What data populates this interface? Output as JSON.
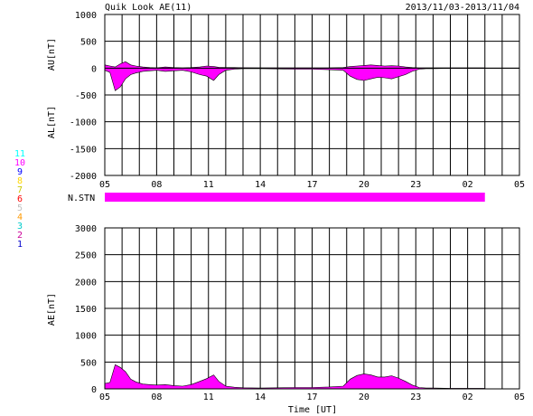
{
  "header": {
    "title": "Quik Look AE(11)",
    "date_range": "2013/11/03-2013/11/04"
  },
  "colors": {
    "fill": "#ff00ff",
    "axis": "#000000"
  },
  "chart_data": [
    {
      "type": "area",
      "name": "AU/AL",
      "ylabel_upper": "AU[nT]",
      "ylabel_lower": "AL[nT]",
      "ylim": [
        -2000,
        1000
      ],
      "yticks": [
        1000,
        500,
        0,
        -500,
        -1000,
        -1500,
        -2000
      ],
      "xlim": [
        5,
        29
      ],
      "xtick_labels": [
        "05",
        "08",
        "11",
        "14",
        "17",
        "20",
        "23",
        "02",
        "05"
      ],
      "grid": true,
      "au": {
        "x": [
          5.0,
          5.3,
          5.6,
          5.9,
          6.2,
          6.5,
          6.8,
          7.2,
          7.6,
          8.0,
          8.5,
          9.0,
          9.5,
          10.0,
          10.5,
          10.9,
          11.3,
          11.6,
          12.0,
          12.5,
          13.0,
          14.0,
          15.0,
          16.0,
          17.0,
          18.0,
          18.8,
          19.2,
          19.6,
          20.0,
          20.4,
          20.8,
          21.2,
          21.6,
          22.0,
          22.4,
          22.8,
          23.2,
          23.6,
          24.0,
          25.0,
          26.0,
          27.0
        ],
        "values": [
          60,
          40,
          20,
          80,
          120,
          60,
          40,
          20,
          10,
          5,
          20,
          10,
          5,
          10,
          20,
          40,
          30,
          15,
          10,
          10,
          8,
          5,
          5,
          5,
          5,
          5,
          10,
          30,
          40,
          50,
          60,
          50,
          40,
          45,
          40,
          20,
          10,
          5,
          5,
          5,
          5,
          5,
          5
        ]
      },
      "al": {
        "x": [
          5.0,
          5.3,
          5.6,
          5.9,
          6.2,
          6.5,
          6.8,
          7.2,
          7.6,
          8.0,
          8.5,
          9.0,
          9.5,
          10.0,
          10.5,
          10.9,
          11.3,
          11.6,
          12.0,
          12.5,
          13.0,
          14.0,
          15.0,
          16.0,
          17.0,
          18.0,
          18.8,
          19.2,
          19.6,
          20.0,
          20.4,
          20.8,
          21.2,
          21.6,
          22.0,
          22.4,
          22.8,
          23.2,
          23.6,
          24.0,
          25.0,
          26.0,
          27.0
        ],
        "values": [
          -40,
          -80,
          -420,
          -350,
          -200,
          -120,
          -90,
          -60,
          -50,
          -40,
          -60,
          -50,
          -40,
          -70,
          -120,
          -150,
          -230,
          -120,
          -40,
          -20,
          -10,
          -10,
          -15,
          -20,
          -20,
          -30,
          -40,
          -150,
          -210,
          -230,
          -200,
          -170,
          -180,
          -200,
          -160,
          -120,
          -60,
          -20,
          -10,
          -10,
          -5,
          -5,
          -5
        ]
      }
    },
    {
      "type": "bar",
      "name": "N.STN",
      "ylabel": "N.STN",
      "bar_extent": [
        5,
        27
      ],
      "legend_numbers": [
        "11",
        "10",
        "9",
        "8",
        "7",
        "6",
        "5",
        "4",
        "3",
        "2",
        "1"
      ],
      "legend_colors": [
        "#00ffff",
        "#ff00ff",
        "#0000ff",
        "#ffd700",
        "#c8c800",
        "#ff0000",
        "#c0c0c0",
        "#ff9900",
        "#00cccc",
        "#cc0099",
        "#0000cc"
      ],
      "xtick_labels": [
        "05",
        "08",
        "11",
        "14",
        "17",
        "20",
        "23",
        "02",
        "05"
      ]
    },
    {
      "type": "area",
      "name": "AE",
      "ylabel": "AE[nT]",
      "xlabel": "Time [UT]",
      "ylim": [
        0,
        3000
      ],
      "yticks": [
        3000,
        2500,
        2000,
        1500,
        1000,
        500,
        0
      ],
      "xlim": [
        5,
        29
      ],
      "xtick_labels": [
        "05",
        "08",
        "11",
        "14",
        "17",
        "20",
        "23",
        "02",
        "05"
      ],
      "grid": true,
      "x": [
        5.0,
        5.3,
        5.6,
        5.9,
        6.2,
        6.5,
        6.8,
        7.2,
        7.6,
        8.0,
        8.5,
        9.0,
        9.5,
        10.0,
        10.5,
        10.9,
        11.3,
        11.6,
        12.0,
        12.5,
        13.0,
        14.0,
        15.0,
        16.0,
        17.0,
        18.0,
        18.8,
        19.2,
        19.6,
        20.0,
        20.4,
        20.8,
        21.2,
        21.6,
        22.0,
        22.4,
        22.8,
        23.2,
        23.6,
        24.0,
        25.0,
        26.0,
        27.0
      ],
      "values": [
        100,
        120,
        450,
        400,
        320,
        180,
        130,
        90,
        80,
        70,
        80,
        60,
        50,
        80,
        140,
        190,
        260,
        140,
        50,
        30,
        20,
        15,
        20,
        25,
        25,
        35,
        50,
        180,
        250,
        280,
        260,
        220,
        220,
        245,
        200,
        140,
        70,
        25,
        15,
        15,
        10,
        10,
        10
      ]
    }
  ]
}
